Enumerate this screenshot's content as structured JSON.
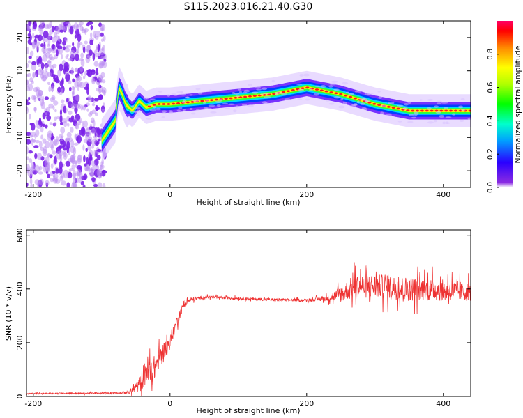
{
  "title": "S115.2023.016.21.40.G30",
  "chart_data": [
    {
      "type": "heatmap",
      "xlabel": "Height of straight line (km)",
      "ylabel": "Frequency (Hz)",
      "xlim": [
        -210,
        440
      ],
      "ylim": [
        -25,
        25
      ],
      "x_ticks": [
        -200,
        0,
        200,
        400
      ],
      "y_ticks": [
        -20,
        -10,
        0,
        10,
        20
      ],
      "colorbar": {
        "label": "Normalized spectral amplitude",
        "range": [
          0,
          1
        ],
        "ticks": [
          "0.0",
          "0.2",
          "0.4",
          "0.6",
          "0.8"
        ],
        "ticks_numeric": [
          0.0,
          0.2,
          0.4,
          0.6,
          0.8
        ],
        "colormap": "hsv"
      },
      "ridge": {
        "description_free": true,
        "x": [
          -100,
          -90,
          -80,
          -75,
          -70,
          -65,
          -55,
          -45,
          -35,
          -20,
          0,
          50,
          100,
          150,
          200,
          250,
          300,
          350,
          400,
          440
        ],
        "y": [
          -11,
          -8,
          -5,
          5,
          3,
          0,
          -2,
          1,
          -1,
          0,
          0,
          1,
          2,
          3,
          5,
          3,
          0,
          -2,
          -2,
          -2
        ]
      },
      "noise_region": {
        "x_from": -210,
        "x_to": -95
      }
    },
    {
      "type": "line",
      "xlabel": "Height of straight line (km)",
      "ylabel": "SNR (10 * v/v)",
      "xlim": [
        -210,
        440
      ],
      "ylim": [
        0,
        620
      ],
      "x_ticks": [
        -200,
        0,
        200,
        400
      ],
      "y_ticks": [
        0,
        200,
        400,
        600
      ],
      "color": "#ee3333",
      "series": [
        {
          "x": [
            -210,
            -150,
            -100,
            -60,
            -45,
            -35,
            -28,
            -20,
            -10,
            0,
            10,
            20,
            30,
            50,
            100,
            150,
            200,
            230,
            250,
            270,
            300,
            350,
            400,
            440
          ],
          "y": [
            10,
            12,
            12,
            15,
            40,
            100,
            80,
            120,
            170,
            200,
            280,
            340,
            360,
            370,
            365,
            360,
            358,
            365,
            380,
            410,
            410,
            400,
            395,
            390
          ],
          "spread": [
            4,
            5,
            5,
            10,
            50,
            120,
            120,
            80,
            60,
            50,
            40,
            25,
            15,
            10,
            10,
            10,
            10,
            20,
            60,
            90,
            90,
            90,
            80,
            70
          ]
        }
      ]
    }
  ]
}
